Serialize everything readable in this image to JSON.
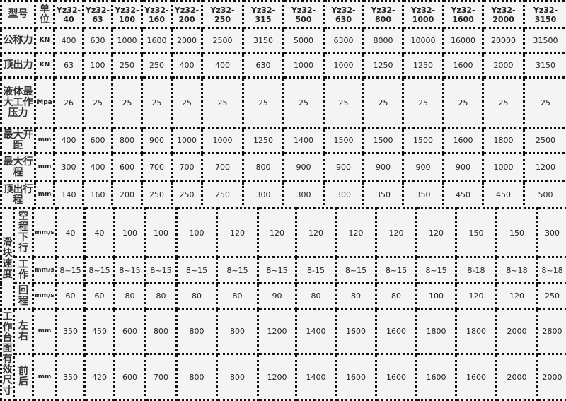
{
  "header": {
    "label": "型号",
    "unit": "单位",
    "models": [
      "Yz32-\n40",
      "Yz32-\n63",
      "Yz32-\n100",
      "Yz32-\n160",
      "Yz32-\n200",
      "Yz32-\n250",
      "Yz32-\n315",
      "Yz32-\n500",
      "Yz32-\n630",
      "Yz32-\n800",
      "Yz32-\n1000",
      "Yz32-\n1600",
      "Yz32-\n2000",
      "Yz32-\n3150"
    ]
  },
  "rows": [
    {
      "label": "公称力",
      "unit": "KN",
      "values": [
        "400",
        "630",
        "1000",
        "1600",
        "2000",
        "2500",
        "3150",
        "5000",
        "6300",
        "8000",
        "10000",
        "16000",
        "20000",
        "31500"
      ]
    },
    {
      "label": "顶出力",
      "unit": "KN",
      "values": [
        "63",
        "100",
        "250",
        "250",
        "400",
        "400",
        "630",
        "1000",
        "1000",
        "1250",
        "1250",
        "1600",
        "2000",
        "3150"
      ]
    },
    {
      "label": "液体最大工作压力",
      "unit": "Mpa",
      "values": [
        "26",
        "25",
        "25",
        "25",
        "25",
        "25",
        "25",
        "25",
        "25",
        "25",
        "25",
        "25",
        "25",
        "25"
      ]
    },
    {
      "label": "最大开距",
      "unit": "mm",
      "values": [
        "400",
        "600",
        "800",
        "900",
        "1000",
        "1000",
        "1250",
        "1400",
        "1500",
        "1500",
        "1500",
        "1600",
        "1800",
        "2500"
      ]
    },
    {
      "label": "最大行程",
      "unit": "mm",
      "values": [
        "300",
        "400",
        "600",
        "700",
        "700",
        "700",
        "800",
        "900",
        "900",
        "900",
        "900",
        "900",
        "1000",
        "1200"
      ]
    },
    {
      "label": "顶出行程",
      "unit": "mm",
      "values": [
        "140",
        "160",
        "200",
        "250",
        "250",
        "250",
        "300",
        "300",
        "300",
        "350",
        "350",
        "450",
        "450",
        "500"
      ]
    }
  ],
  "groups": [
    {
      "label": "滑块速度",
      "rows": [
        {
          "label": "空程下行",
          "unit": "mm/s",
          "values": [
            "40",
            "40",
            "100",
            "100",
            "100",
            "120",
            "120",
            "120",
            "120",
            "120",
            "120",
            "150",
            "150",
            "300"
          ]
        },
        {
          "label": "工作",
          "unit": "mm/s",
          "values": [
            "8~15",
            "8~15",
            "8~15",
            "8~15",
            "8~15",
            "8~15",
            "8~15",
            "8-15",
            "8~15",
            "8~15",
            "8~15",
            "8-18",
            "8~18",
            "8~18"
          ]
        },
        {
          "label": "回程",
          "unit": "mm/s",
          "values": [
            "60",
            "60",
            "80",
            "80",
            "80",
            "80",
            "90",
            "80",
            "80",
            "80",
            "100",
            "120",
            "120",
            "250"
          ]
        }
      ]
    },
    {
      "label": "工作台面有效尺寸",
      "rows": [
        {
          "label": "左右",
          "unit": "mm",
          "values": [
            "350",
            "450",
            "600",
            "800",
            "800",
            "800",
            "1200",
            "1400",
            "1600",
            "1600",
            "1800",
            "1800",
            "2000",
            "2800"
          ]
        },
        {
          "label": "前后",
          "unit": "mm",
          "values": [
            "350",
            "420",
            "600",
            "700",
            "800",
            "800",
            "1200",
            "1400",
            "1600",
            "1600",
            "1600",
            "1600",
            "2000",
            "2000"
          ]
        }
      ]
    }
  ]
}
